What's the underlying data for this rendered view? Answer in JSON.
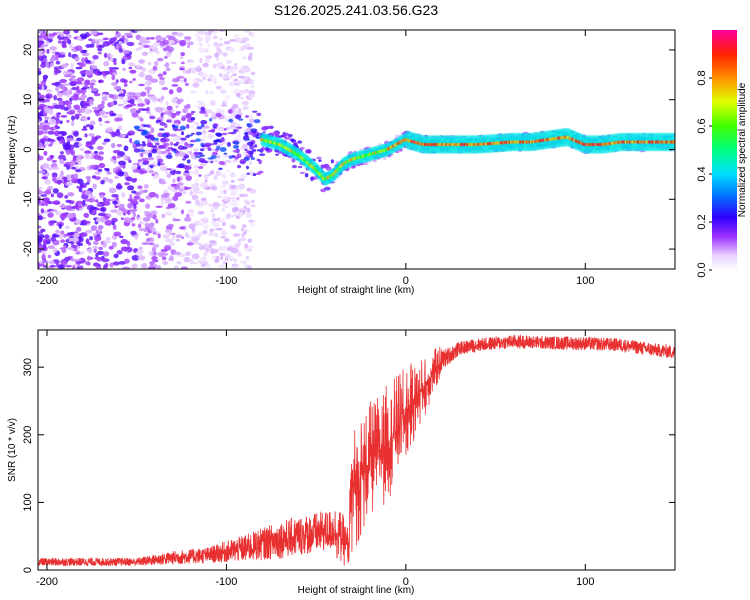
{
  "title": "S126.2025.241.03.56.G23",
  "chart_data": [
    {
      "type": "heatmap",
      "name": "spectrogram",
      "xlabel": "Height of straight line (km)",
      "ylabel": "Frequency (Hz)",
      "xlim": [
        -205,
        150
      ],
      "ylim": [
        -24,
        24
      ],
      "xticks": [
        -200,
        -100,
        0,
        100
      ],
      "yticks": [
        -20,
        -10,
        0,
        10,
        20
      ],
      "colorbar": {
        "label": "Normalized spectral amplitude",
        "range": [
          0,
          1
        ],
        "ticks": [
          "0.0",
          "0.2",
          "0.4",
          "0.6",
          "0.8"
        ]
      },
      "ridge": {
        "x": [
          -80,
          -70,
          -60,
          -50,
          -45,
          -40,
          -35,
          -30,
          -20,
          -10,
          0,
          10,
          20,
          40,
          60,
          70,
          80,
          90,
          100,
          110,
          120,
          130,
          140,
          150
        ],
        "y": [
          2,
          1,
          -1,
          -4,
          -6,
          -5,
          -3,
          -2,
          -1,
          0,
          2,
          1,
          1,
          1,
          1.5,
          1.5,
          2,
          2.5,
          1,
          1,
          1.5,
          1.5,
          1.5,
          1.5
        ]
      }
    },
    {
      "type": "line",
      "name": "snr",
      "xlabel": "Height of straight line (km)",
      "ylabel": "SNR (10 * v/v)",
      "xlim": [
        -205,
        150
      ],
      "ylim": [
        0,
        355
      ],
      "xticks": [
        -200,
        -100,
        0,
        100
      ],
      "yticks": [
        0,
        100,
        200,
        300
      ],
      "color": "#e83030",
      "envelope": {
        "x": [
          -205,
          -150,
          -130,
          -110,
          -90,
          -70,
          -50,
          -40,
          -32,
          -30,
          -25,
          -20,
          -10,
          0,
          10,
          20,
          30,
          40,
          60,
          80,
          100,
          120,
          140,
          150
        ],
        "mean": [
          12,
          12,
          18,
          22,
          32,
          45,
          55,
          60,
          35,
          120,
          140,
          160,
          190,
          230,
          270,
          310,
          328,
          333,
          338,
          336,
          335,
          333,
          325,
          322
        ],
        "noise": [
          6,
          6,
          10,
          12,
          20,
          28,
          30,
          30,
          20,
          60,
          60,
          55,
          55,
          45,
          30,
          15,
          10,
          10,
          10,
          10,
          10,
          10,
          10,
          10
        ]
      }
    }
  ]
}
